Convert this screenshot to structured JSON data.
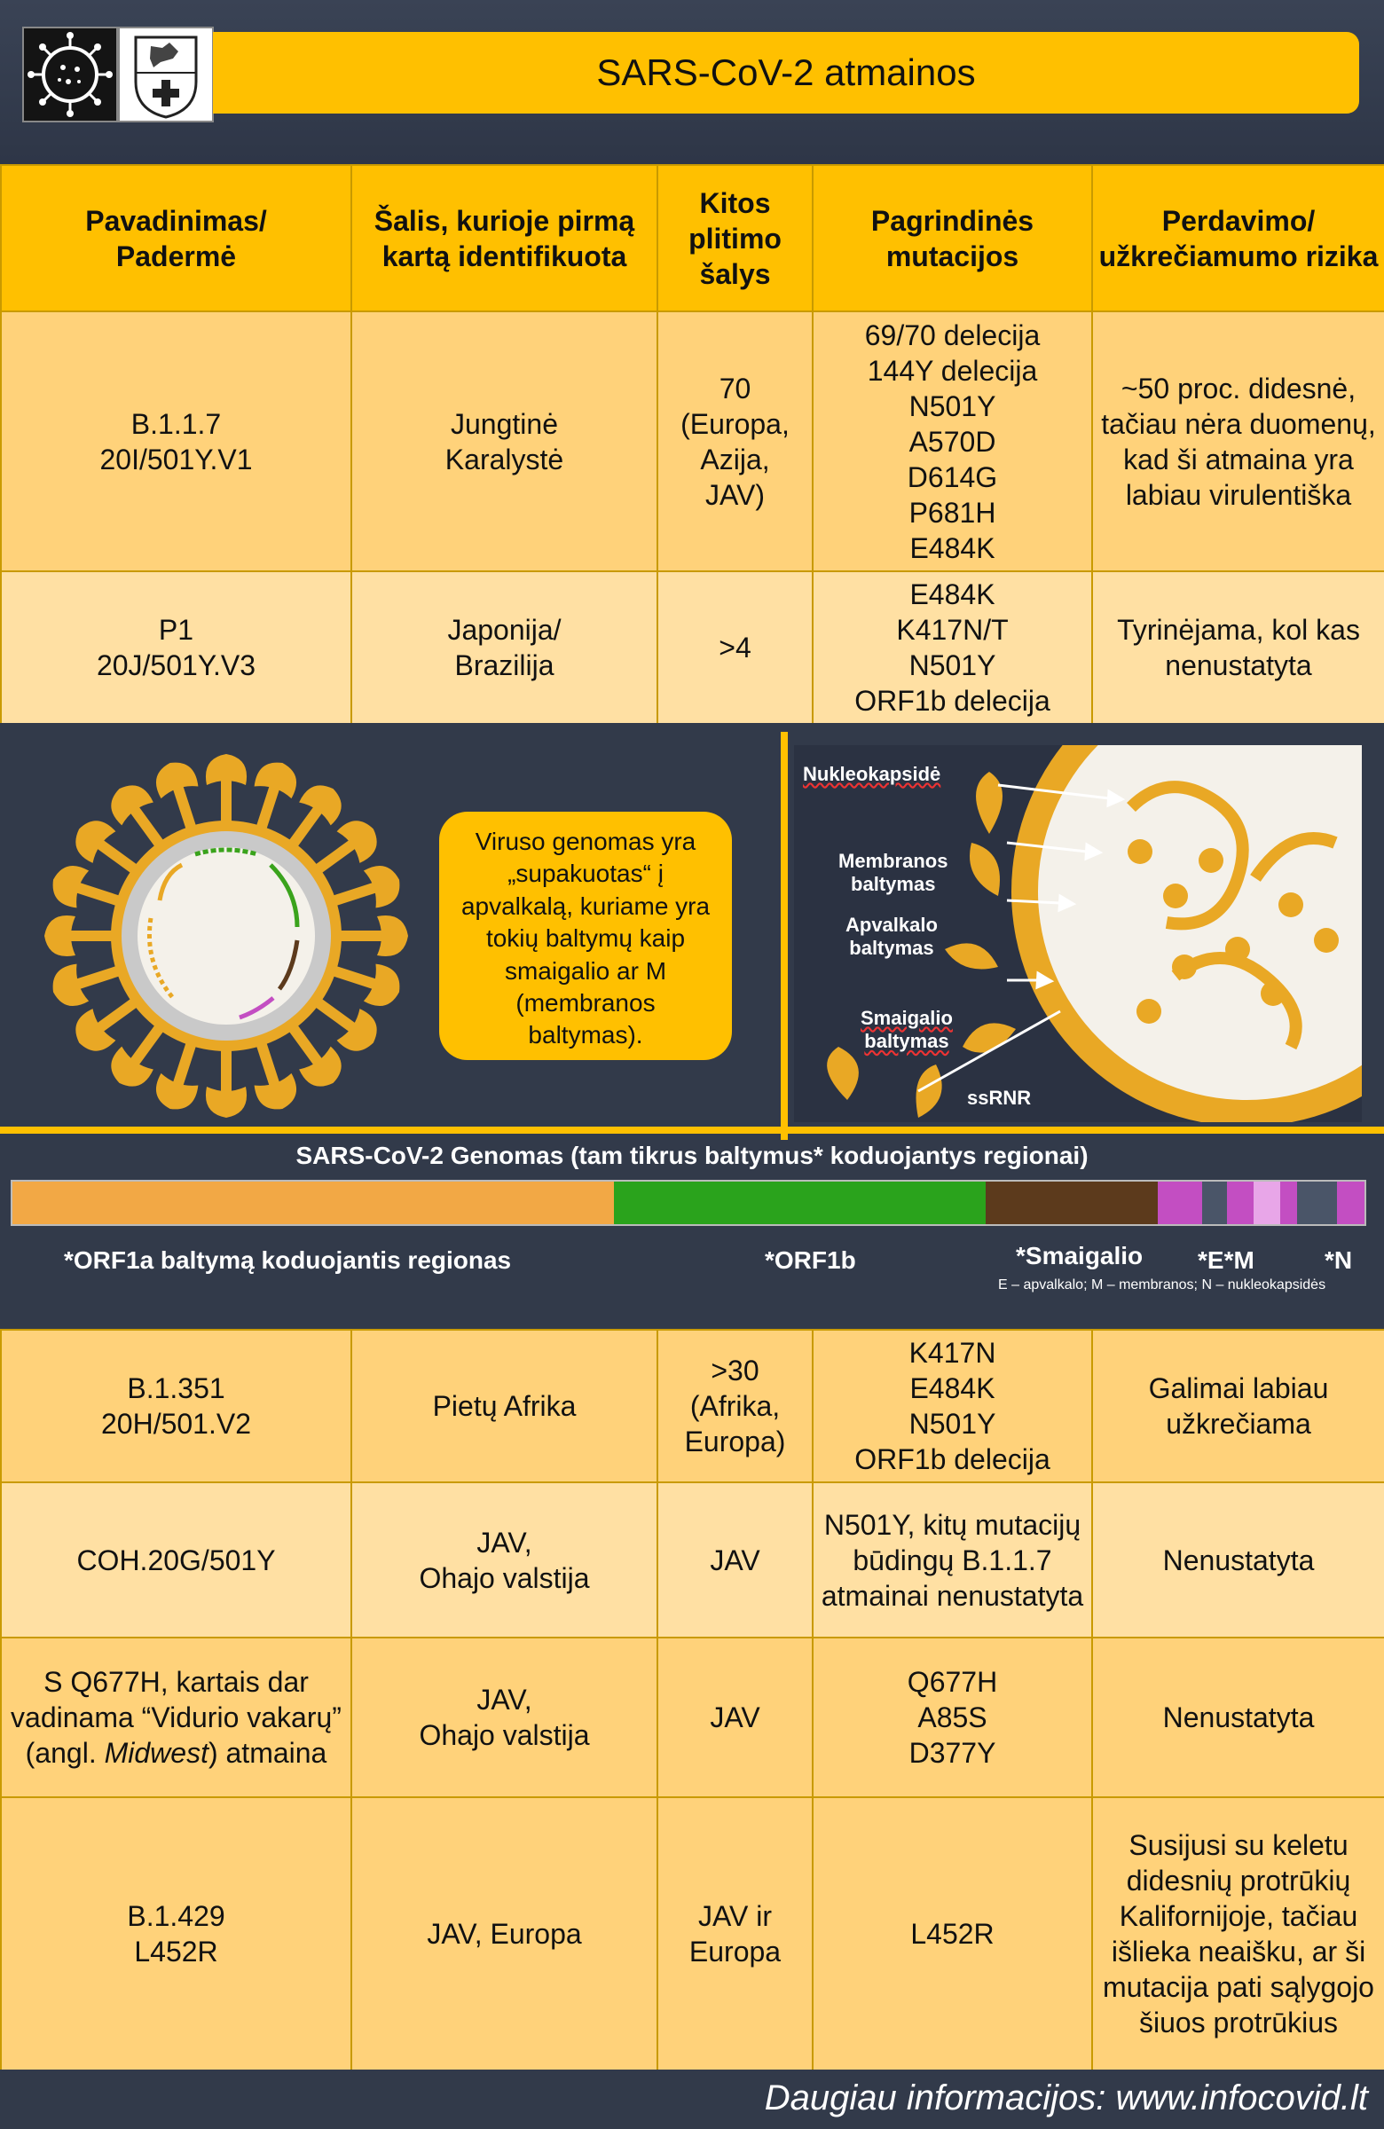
{
  "title": "SARS-CoV-2 atmainos",
  "logos": {
    "left": "virus-logo",
    "right": "coat-of-arms-logo"
  },
  "columns": [
    "Pavadinimas/\nPadermė",
    "Šalis, kurioje pirmą kartą identifikuota",
    "Kitos plitimo šalys",
    "Pagrindinės mutacijos",
    "Perdavimo/ užkrečiamumo rizika"
  ],
  "rows_top": [
    {
      "name": "B.1.1.7\n20I/501Y.V1",
      "country": "Jungtinė\nKaralystė",
      "spread": "70\n(Europa,\nAzija,\nJAV)",
      "mutations": "69/70 delecija\n144Y delecija\nN501Y\nA570D\nD614G\nP681H\nE484K",
      "risk": "~50 proc. didesnė, tačiau nėra duomenų, kad ši atmaina yra labiau virulentiška"
    },
    {
      "name": "P1\n20J/501Y.V3",
      "country": "Japonija/\nBrazilija",
      "spread": ">4",
      "mutations": "E484K\nK417N/T\nN501Y\nORF1b delecija",
      "risk": "Tyrinėjama, kol kas nenustatyta"
    }
  ],
  "illustration": {
    "bubble": "Viruso genomas yra „supakuotas“ į apvalkalą, kuriame yra tokių baltymų kaip smaigalio ar M (membranos baltymas).",
    "labels": {
      "nucleocapsid": "Nukleokapsidė",
      "membrane": "Membranos\nbaltymas",
      "envelope": "Apvalkalo\nbaltymas",
      "spike": "Smaigalio\nbaltymas",
      "ssrna": "ssRNR"
    }
  },
  "genome": {
    "title": "SARS-CoV-2 Genomas (tam tikrus baltymus* koduojantys regionai)",
    "segments": [
      {
        "color": "#f2a845",
        "share": 0.445
      },
      {
        "color": "#2aa31c",
        "share": 0.275
      },
      {
        "color": "#5c3a1c",
        "share": 0.127
      },
      {
        "color": "#c34ec2",
        "share": 0.033
      },
      {
        "color": "#4a5568",
        "share": 0.018
      },
      {
        "color": "#c34ec2",
        "share": 0.02
      },
      {
        "color": "#e8a6e8",
        "share": 0.02
      },
      {
        "color": "#c34ec2",
        "share": 0.012
      },
      {
        "color": "#4a5568",
        "share": 0.03
      },
      {
        "color": "#c34ec2",
        "share": 0.02
      }
    ],
    "labels": {
      "orf1a": "*ORF1a baltymą koduojantis regionas",
      "orf1b": "*ORF1b",
      "spike": "*Smaigalio",
      "em": "*E*M",
      "n": "*N"
    },
    "note": "E – apvalkalo; M – membranos; N – nukleokapsidės"
  },
  "rows_bottom": [
    {
      "name": "B.1.351\n20H/501.V2",
      "country": "Pietų Afrika",
      "spread": ">30\n(Afrika,\nEuropa)",
      "mutations": "K417N\nE484K\nN501Y\nORF1b delecija",
      "risk": "Galimai labiau užkrečiama"
    },
    {
      "name": "COH.20G/501Y",
      "country": "JAV,\nOhajo valstija",
      "spread": "JAV",
      "mutations": "N501Y, kitų mutacijų būdingų B.1.1.7 atmainai nenustatyta",
      "risk": "Nenustatyta"
    },
    {
      "name_pre": "S Q677H, kartais dar vadinama “Vidurio vakarų” (angl. ",
      "name_em": "Midwest",
      "name_post": ") atmaina",
      "country": "JAV,\nOhajo valstija",
      "spread": "JAV",
      "mutations": "Q677H\nA85S\nD377Y",
      "risk": "Nenustatyta"
    },
    {
      "name": "B.1.429\nL452R",
      "country": "JAV, Europa",
      "spread": "JAV ir\nEuropa",
      "mutations": "L452R",
      "risk": "Susijusi su keletu didesnių protrūkių Kalifornijoje, tačiau išlieka neaišku, ar ši mutacija pati sąlygojo šiuos protrūkius"
    }
  ],
  "footer": "Daugiau informacijos: www.infocovid.lt",
  "colors": {
    "accent": "#ffc000",
    "background": "#323a4a",
    "rowA": "#ffd27a",
    "rowB": "#ffe0a3"
  }
}
